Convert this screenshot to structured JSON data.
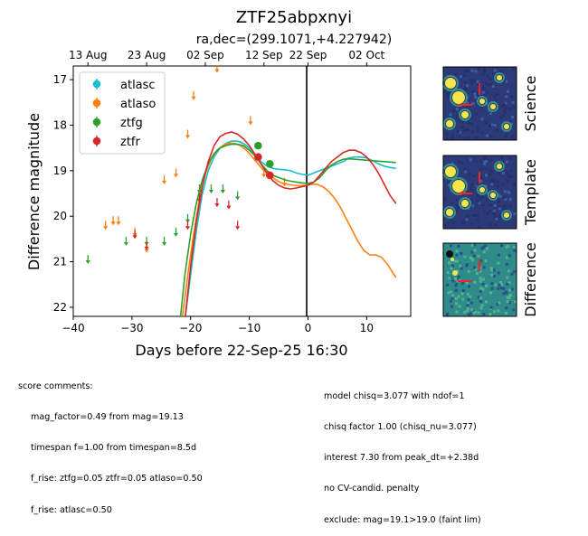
{
  "figure": {
    "title": "ZTF25abpxnyi",
    "subtitle": "ra,dec=(299.1071,+4.227942)"
  },
  "chart_data": {
    "type": "scatter",
    "xlabel": "Days before 22-Sep-25 16:30",
    "ylabel": "Difference magnitude",
    "xlim": [
      -40,
      17.5
    ],
    "ylim": [
      22.2,
      16.7
    ],
    "y_inverted": true,
    "x_ticks": [
      -40,
      -30,
      -20,
      -10,
      0,
      10
    ],
    "y_ticks": [
      17,
      18,
      19,
      20,
      21,
      22
    ],
    "top_axis_ticks": [
      {
        "x": -37.5,
        "label": "13 Aug"
      },
      {
        "x": -27.5,
        "label": "23 Aug"
      },
      {
        "x": -17.5,
        "label": "02 Sep"
      },
      {
        "x": -7.5,
        "label": "12 Sep"
      },
      {
        "x": 0,
        "label": "22 Sep"
      },
      {
        "x": 10,
        "label": "02 Oct"
      }
    ],
    "reference_line_x": 0,
    "legend_position": "upper-left",
    "series": [
      {
        "name": "atlasc",
        "color": "#17becf",
        "detections": [],
        "upper_limits": [],
        "model": [
          [
            -21,
            22.3
          ],
          [
            -20,
            21.3
          ],
          [
            -19,
            20.3
          ],
          [
            -18,
            19.5
          ],
          [
            -17,
            19
          ],
          [
            -16,
            18.7
          ],
          [
            -15,
            18.5
          ],
          [
            -14,
            18.4
          ],
          [
            -13,
            18.35
          ],
          [
            -12,
            18.35
          ],
          [
            -11,
            18.4
          ],
          [
            -10,
            18.5
          ],
          [
            -9,
            18.65
          ],
          [
            -8,
            18.8
          ],
          [
            -7,
            18.9
          ],
          [
            -6,
            18.95
          ],
          [
            -5,
            18.97
          ],
          [
            -4,
            18.98
          ],
          [
            -3,
            19
          ],
          [
            -2,
            19.05
          ],
          [
            -1,
            19.08
          ],
          [
            0,
            19.1
          ],
          [
            1,
            19.05
          ],
          [
            2,
            19
          ],
          [
            3,
            18.95
          ],
          [
            4,
            18.9
          ],
          [
            5,
            18.85
          ],
          [
            6,
            18.8
          ],
          [
            7,
            18.72
          ],
          [
            8,
            18.7
          ],
          [
            9,
            18.7
          ],
          [
            10,
            18.72
          ],
          [
            11,
            18.78
          ],
          [
            12,
            18.85
          ],
          [
            13,
            18.9
          ],
          [
            14,
            18.93
          ],
          [
            15,
            18.95
          ]
        ]
      },
      {
        "name": "atlaso",
        "color": "#ff7f0e",
        "detections": [],
        "upper_limits": [
          [
            -34.5,
            20.2
          ],
          [
            -33.2,
            20.1
          ],
          [
            -32.3,
            20.1
          ],
          [
            -29.5,
            20.35
          ],
          [
            -27.5,
            20.7
          ],
          [
            -24.5,
            19.2
          ],
          [
            -22.5,
            19.05
          ],
          [
            -20.5,
            18.2
          ],
          [
            -19.5,
            17.35
          ],
          [
            -15.5,
            16.75
          ],
          [
            -9.8,
            17.9
          ],
          [
            -7.5,
            19.05
          ],
          [
            -4,
            19.25
          ]
        ],
        "model": [
          [
            -21.5,
            22.3
          ],
          [
            -20.5,
            21.3
          ],
          [
            -19.5,
            20.4
          ],
          [
            -18.5,
            19.6
          ],
          [
            -17.5,
            19.05
          ],
          [
            -16.5,
            18.75
          ],
          [
            -15.5,
            18.55
          ],
          [
            -14.5,
            18.45
          ],
          [
            -13.5,
            18.4
          ],
          [
            -12.5,
            18.4
          ],
          [
            -11.5,
            18.45
          ],
          [
            -10.5,
            18.55
          ],
          [
            -9.5,
            18.7
          ],
          [
            -8.5,
            18.85
          ],
          [
            -7.5,
            19
          ],
          [
            -6.5,
            19.1
          ],
          [
            -5.5,
            19.2
          ],
          [
            -4.5,
            19.27
          ],
          [
            -3.5,
            19.3
          ],
          [
            -2.5,
            19.32
          ],
          [
            -1.5,
            19.33
          ],
          [
            -0.5,
            19.32
          ],
          [
            0.5,
            19.3
          ],
          [
            1.5,
            19.3
          ],
          [
            2.5,
            19.35
          ],
          [
            3.5,
            19.45
          ],
          [
            4.5,
            19.6
          ],
          [
            5.5,
            19.8
          ],
          [
            6.5,
            20.05
          ],
          [
            7.5,
            20.3
          ],
          [
            8.5,
            20.55
          ],
          [
            9.5,
            20.75
          ],
          [
            10.5,
            20.85
          ],
          [
            11.5,
            20.85
          ],
          [
            12.5,
            20.9
          ],
          [
            13.5,
            21.05
          ],
          [
            14.5,
            21.25
          ],
          [
            15,
            21.35
          ]
        ]
      },
      {
        "name": "ztfg",
        "color": "#2ca02c",
        "detections": [
          [
            -8.5,
            18.45
          ],
          [
            -6.5,
            18.85
          ]
        ],
        "upper_limits": [
          [
            -37.5,
            20.95
          ],
          [
            -31,
            20.55
          ],
          [
            -27.5,
            20.55
          ],
          [
            -24.5,
            20.55
          ],
          [
            -22.5,
            20.35
          ],
          [
            -20.5,
            20.05
          ],
          [
            -18.5,
            19.4
          ],
          [
            -16.5,
            19.4
          ],
          [
            -14.5,
            19.4
          ],
          [
            -12,
            19.55
          ]
        ],
        "model": [
          [
            -21.8,
            22.3
          ],
          [
            -21,
            21.3
          ],
          [
            -20,
            20.4
          ],
          [
            -19,
            19.7
          ],
          [
            -18,
            19.2
          ],
          [
            -17,
            18.85
          ],
          [
            -16,
            18.62
          ],
          [
            -15,
            18.5
          ],
          [
            -14,
            18.45
          ],
          [
            -13,
            18.42
          ],
          [
            -12,
            18.42
          ],
          [
            -11,
            18.45
          ],
          [
            -10,
            18.55
          ],
          [
            -9,
            18.68
          ],
          [
            -8,
            18.85
          ],
          [
            -7,
            19
          ],
          [
            -6,
            19.1
          ],
          [
            -5,
            19.15
          ],
          [
            -4,
            19.2
          ],
          [
            -3,
            19.23
          ],
          [
            -2,
            19.25
          ],
          [
            -1,
            19.27
          ],
          [
            0,
            19.28
          ],
          [
            1,
            19.25
          ],
          [
            2,
            19.15
          ],
          [
            3,
            19
          ],
          [
            4,
            18.88
          ],
          [
            5,
            18.8
          ],
          [
            6,
            18.75
          ],
          [
            7,
            18.74
          ],
          [
            8,
            18.75
          ],
          [
            9,
            18.76
          ],
          [
            10,
            18.77
          ],
          [
            11,
            18.78
          ],
          [
            12,
            18.79
          ],
          [
            13,
            18.8
          ],
          [
            14,
            18.81
          ],
          [
            15,
            18.82
          ]
        ]
      },
      {
        "name": "ztfr",
        "color": "#d62728",
        "detections": [
          [
            -8.5,
            18.7
          ],
          [
            -6.5,
            19.1
          ]
        ],
        "upper_limits": [
          [
            -29.5,
            20.4
          ],
          [
            -27.5,
            20.65
          ],
          [
            -20.5,
            20.2
          ],
          [
            -18.5,
            19.6
          ],
          [
            -15.5,
            19.7
          ],
          [
            -13.5,
            19.75
          ],
          [
            -12,
            20.2
          ]
        ],
        "model": [
          [
            -21,
            22.3
          ],
          [
            -20,
            21.1
          ],
          [
            -19,
            20.1
          ],
          [
            -18,
            19.35
          ],
          [
            -17,
            18.8
          ],
          [
            -16,
            18.45
          ],
          [
            -15,
            18.25
          ],
          [
            -14,
            18.18
          ],
          [
            -13,
            18.15
          ],
          [
            -12,
            18.2
          ],
          [
            -11,
            18.3
          ],
          [
            -10,
            18.45
          ],
          [
            -9,
            18.65
          ],
          [
            -8,
            18.85
          ],
          [
            -7,
            19.05
          ],
          [
            -6,
            19.22
          ],
          [
            -5,
            19.32
          ],
          [
            -4,
            19.38
          ],
          [
            -3,
            19.4
          ],
          [
            -2,
            19.38
          ],
          [
            -1,
            19.35
          ],
          [
            0,
            19.32
          ],
          [
            1,
            19.25
          ],
          [
            2,
            19.1
          ],
          [
            3,
            18.95
          ],
          [
            4,
            18.8
          ],
          [
            5,
            18.7
          ],
          [
            6,
            18.6
          ],
          [
            7,
            18.55
          ],
          [
            8,
            18.55
          ],
          [
            9,
            18.6
          ],
          [
            10,
            18.7
          ],
          [
            11,
            18.85
          ],
          [
            12,
            19.05
          ],
          [
            13,
            19.3
          ],
          [
            14,
            19.55
          ],
          [
            15,
            19.72
          ]
        ]
      }
    ]
  },
  "cutouts": {
    "labels": [
      "Science",
      "Template",
      "Difference"
    ],
    "colors": {
      "background": "#2d3a7a",
      "bright": "#f5e74a",
      "mid": "#3aa58a",
      "marker": "#ff2020"
    }
  },
  "score_comments": {
    "heading": "score comments:",
    "left_lines": [
      "mag_factor=0.49 from mag=19.13",
      "timespan f=1.00 from timespan=8.5d",
      "f_rise: ztfg=0.05 ztfr=0.05 atlaso=0.50",
      "f_rise: atlasc=0.50"
    ],
    "right_lines": [
      "model chisq=3.077 with ndof=1",
      "chisq factor 1.00 (chisq_nu=3.077)",
      "interest 7.30 from peak_dt=+2.38d",
      "no CV-candid. penalty",
      "exclude: mag=19.1>19.0 (faint lim)"
    ]
  }
}
